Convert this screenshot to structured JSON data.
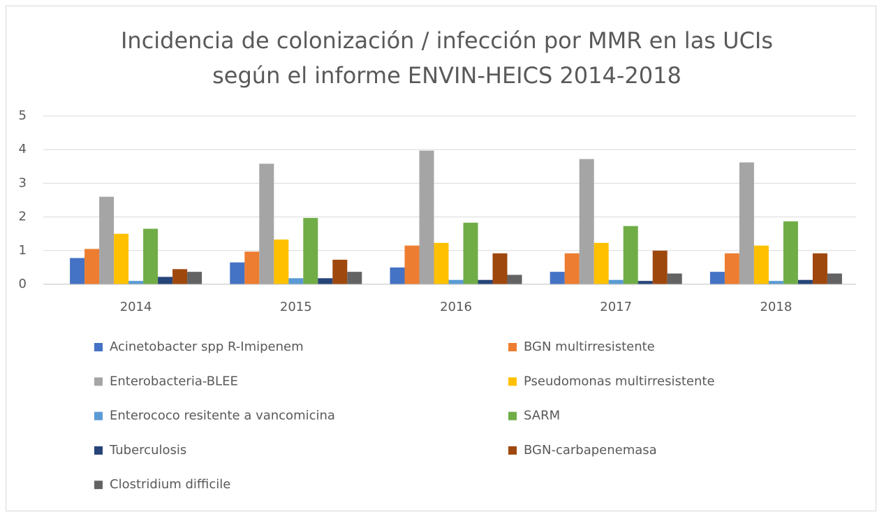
{
  "chart_data": {
    "type": "bar",
    "title": [
      "Incidencia de colonización / infección por MMR en las UCIs",
      "según el informe ENVIN-HEICS 2014-2018"
    ],
    "categories": [
      "2014",
      "2015",
      "2016",
      "2017",
      "2018"
    ],
    "series": [
      {
        "name": "Acinetobacter spp R-Imipenem",
        "color": "#4472c4",
        "values": [
          0.78,
          0.65,
          0.5,
          0.37,
          0.37
        ]
      },
      {
        "name": "BGN multirresistente",
        "color": "#ed7d31",
        "values": [
          1.05,
          0.97,
          1.15,
          0.92,
          0.92
        ]
      },
      {
        "name": "Enterobacteria-BLEE",
        "color": "#a5a5a5",
        "values": [
          2.6,
          3.58,
          3.97,
          3.72,
          3.62
        ]
      },
      {
        "name": "Pseudomonas multirresistente",
        "color": "#ffc000",
        "values": [
          1.5,
          1.33,
          1.23,
          1.23,
          1.15
        ]
      },
      {
        "name": "Enterococo resitente a vancomicina",
        "color": "#5b9bd5",
        "values": [
          0.1,
          0.18,
          0.13,
          0.13,
          0.1
        ]
      },
      {
        "name": "SARM",
        "color": "#70ad47",
        "values": [
          1.65,
          1.97,
          1.83,
          1.73,
          1.87
        ]
      },
      {
        "name": "Tuberculosis",
        "color": "#264478",
        "values": [
          0.22,
          0.18,
          0.13,
          0.1,
          0.13
        ]
      },
      {
        "name": "BGN-carbapenemasa",
        "color": "#9e480e",
        "values": [
          0.45,
          0.73,
          0.92,
          1.0,
          0.92
        ]
      },
      {
        "name": "Clostridium difficile",
        "color": "#636363",
        "values": [
          0.37,
          0.37,
          0.28,
          0.32,
          0.32
        ]
      }
    ],
    "ylim": [
      0,
      5
    ],
    "yticks": [
      0,
      1,
      2,
      3,
      4,
      5
    ],
    "grid": true,
    "legend": "bottom"
  }
}
